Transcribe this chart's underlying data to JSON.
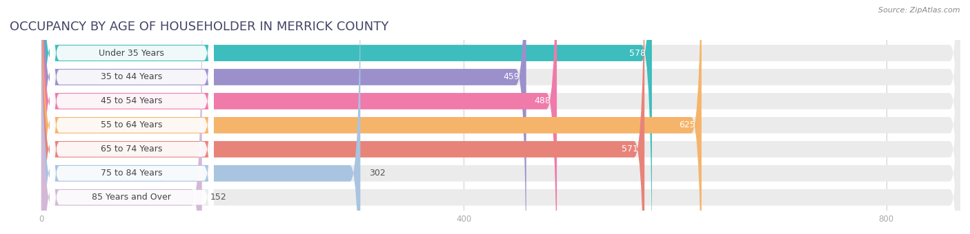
{
  "title": "OCCUPANCY BY AGE OF HOUSEHOLDER IN MERRICK COUNTY",
  "source": "Source: ZipAtlas.com",
  "categories": [
    "Under 35 Years",
    "35 to 44 Years",
    "45 to 54 Years",
    "55 to 64 Years",
    "65 to 74 Years",
    "75 to 84 Years",
    "85 Years and Over"
  ],
  "values": [
    578,
    459,
    488,
    625,
    571,
    302,
    152
  ],
  "bar_colors": [
    "#3dbdbd",
    "#9b90cc",
    "#f07aaa",
    "#f5b46a",
    "#e8837a",
    "#a8c4e0",
    "#d4b8d8"
  ],
  "xlim_left": -30,
  "xlim_right": 870,
  "xticks": [
    0,
    400,
    800
  ],
  "background_color": "#ffffff",
  "bar_bg_color": "#ebebeb",
  "title_fontsize": 13,
  "label_fontsize": 9,
  "value_fontsize": 9,
  "value_threshold_inside": 400,
  "bar_height": 0.68,
  "bar_gap": 1.0
}
